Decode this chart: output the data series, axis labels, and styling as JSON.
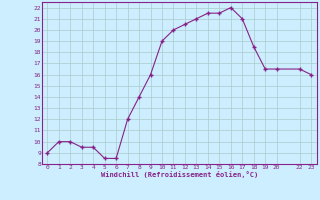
{
  "x": [
    0,
    1,
    2,
    3,
    4,
    5,
    6,
    7,
    8,
    9,
    10,
    11,
    12,
    13,
    14,
    15,
    16,
    17,
    18,
    19,
    20,
    22,
    23
  ],
  "y": [
    9,
    10,
    10,
    9.5,
    9.5,
    8.5,
    8.5,
    12,
    14,
    16,
    19,
    20,
    20.5,
    21,
    21.5,
    21.5,
    22,
    21,
    18.5,
    16.5,
    16.5,
    16.5,
    16
  ],
  "line_color": "#882288",
  "marker": "+",
  "marker_color": "#882288",
  "bg_color": "#cceeff",
  "grid_color": "#aacccc",
  "xlabel": "Windchill (Refroidissement éolien,°C)",
  "xlabel_color": "#882288",
  "ylim": [
    8,
    22.5
  ],
  "yticks": [
    8,
    9,
    10,
    11,
    12,
    13,
    14,
    15,
    16,
    17,
    18,
    19,
    20,
    21,
    22
  ],
  "xticks": [
    0,
    1,
    2,
    3,
    4,
    5,
    6,
    7,
    8,
    9,
    10,
    11,
    12,
    13,
    14,
    15,
    16,
    17,
    18,
    19,
    20,
    22,
    23
  ],
  "tick_color": "#882288",
  "spine_color": "#882288"
}
